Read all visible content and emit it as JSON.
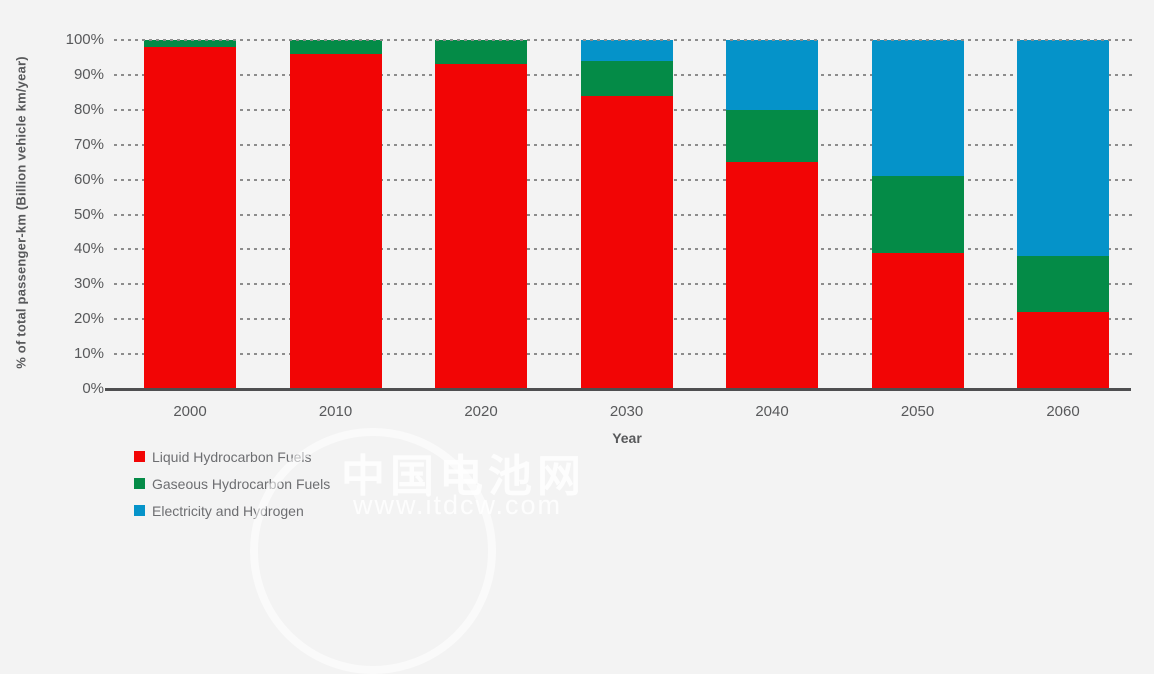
{
  "chart_data": {
    "type": "bar",
    "stacked": true,
    "title": "",
    "xlabel": "Year",
    "ylabel": "% of total passenger-km (Billion vehicle km/year)",
    "categories": [
      "2000",
      "2010",
      "2020",
      "2030",
      "2040",
      "2050",
      "2060"
    ],
    "series": [
      {
        "name": "Liquid Hydrocarbon Fuels",
        "color": "#f20505",
        "values": [
          98,
          96,
          93,
          84,
          65,
          39,
          22
        ]
      },
      {
        "name": "Gaseous Hydrocarbon Fuels",
        "color": "#048b47",
        "values": [
          2,
          4,
          7,
          10,
          15,
          22,
          16
        ]
      },
      {
        "name": "Electricity and Hydrogen",
        "color": "#0593c9",
        "values": [
          0,
          0,
          0,
          6,
          20,
          39,
          62
        ]
      }
    ],
    "ylim": [
      0,
      100
    ],
    "ytick_step": 10,
    "ytick_suffix": "%",
    "grid": "horizontal-dotted",
    "legend_position": "bottom-left"
  },
  "colors": {
    "background": "#f3f3f3",
    "axis_text": "#58595b",
    "gridline": "#8c8c8c",
    "baseline": "#4e4e50",
    "legend_text": "#6d6e71"
  },
  "watermark": {
    "line1": "中国电池网",
    "line2": "www.itdcw.com"
  }
}
